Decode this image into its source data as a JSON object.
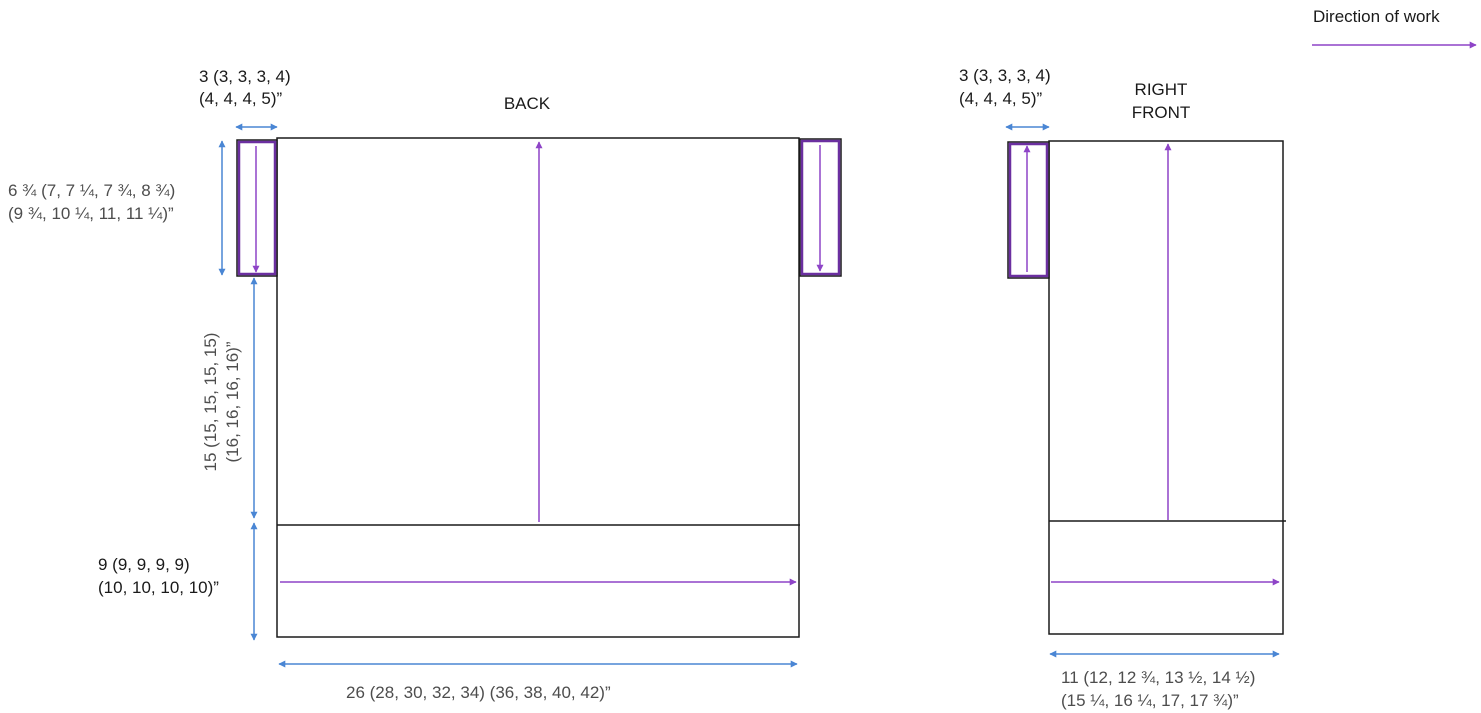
{
  "legend": {
    "label": "Direction of work",
    "arrow_color": "#8e44c7"
  },
  "colors": {
    "outline": "#1a1a1a",
    "cuff_outline": "#6b2fa0",
    "work_arrow": "#8e44c7",
    "dimension_arrow": "#4a86d4"
  },
  "back": {
    "title": "BACK",
    "cuff_width": {
      "line1": "3 (3, 3, 3, 4)",
      "line2": "(4, 4, 4, 5)”"
    },
    "cuff_height": {
      "line1": "6 ¾ (7, 7 ¼, 7 ¾, 8 ¾)",
      "line2": "(9 ¾, 10 ¼, 11, 11 ¼)”"
    },
    "body_height": {
      "line1": "15 (15, 15, 15, 15)",
      "line2": "(16, 16, 16, 16)”"
    },
    "hem_height": {
      "line1": "9 (9, 9, 9, 9)",
      "line2": "(10, 10, 10, 10)”"
    },
    "width": {
      "line1": "26 (28, 30, 32, 34) (36, 38, 40, 42)”"
    }
  },
  "right_front": {
    "title_line1": "RIGHT",
    "title_line2": "FRONT",
    "cuff_width": {
      "line1": "3 (3, 3, 3, 4)",
      "line2": "(4, 4, 4, 5)”"
    },
    "width": {
      "line1": "11 (12, 12 ¾, 13 ½, 14 ½)",
      "line2": "(15 ¼, 16 ¼, 17, 17 ¾)”"
    }
  }
}
